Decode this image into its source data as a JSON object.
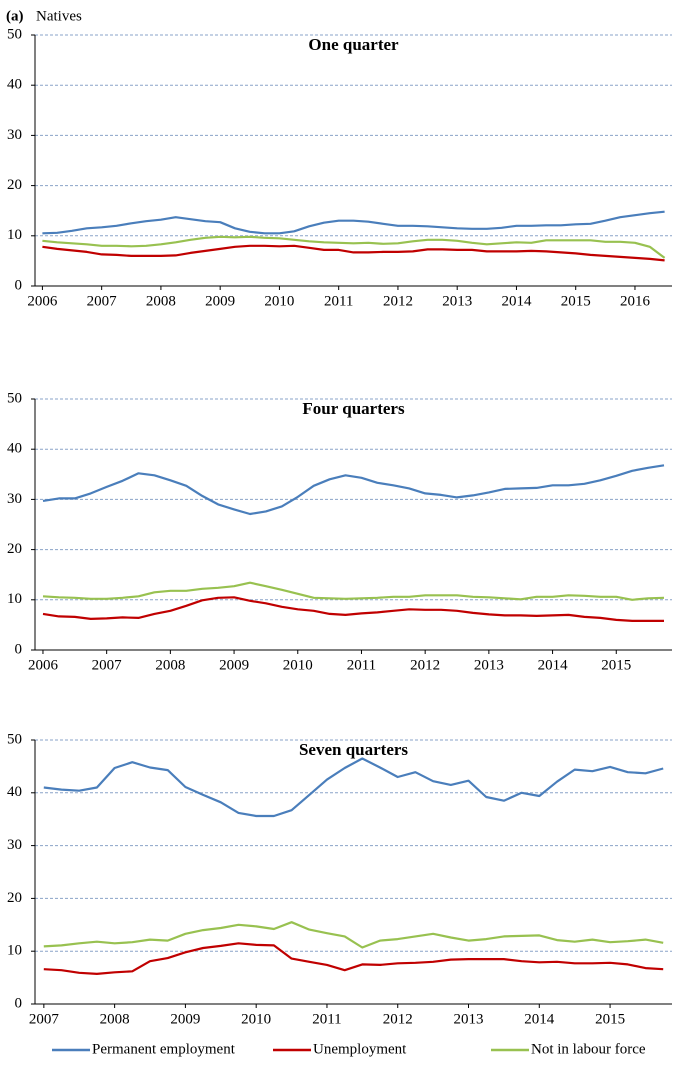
{
  "figure_label": "(a)",
  "figure_title": "Natives",
  "chart_data": [
    {
      "type": "line",
      "title": "One quarter",
      "categories": [
        "2006",
        null,
        null,
        null,
        "2007",
        null,
        null,
        null,
        "2008",
        null,
        null,
        null,
        "2009",
        null,
        null,
        null,
        "2010",
        null,
        null,
        null,
        "2011",
        null,
        null,
        null,
        "2012",
        null,
        null,
        null,
        "2013",
        null,
        null,
        null,
        "2014",
        null,
        null,
        null,
        "2015",
        null,
        null,
        null,
        "2016",
        null,
        null
      ],
      "ylim": [
        0,
        50
      ],
      "yticks": [
        0,
        10,
        20,
        30,
        40,
        50
      ],
      "grid": true,
      "series": [
        {
          "name": "Permanent employment",
          "color": "#4a7ebb",
          "values": [
            10.5,
            10.6,
            11,
            11.5,
            11.7,
            12,
            12.5,
            12.9,
            13.2,
            13.7,
            13.3,
            12.9,
            12.7,
            11.5,
            10.8,
            10.5,
            10.5,
            10.9,
            11.9,
            12.6,
            13,
            13,
            12.8,
            12.4,
            12,
            12,
            11.9,
            11.7,
            11.5,
            11.4,
            11.4,
            11.6,
            12,
            12,
            12.1,
            12.1,
            12.3,
            12.4,
            13,
            13.7,
            14.1,
            14.5,
            14.8
          ]
        },
        {
          "name": "Unemployment",
          "color": "#c00000",
          "values": [
            7.8,
            7.4,
            7.1,
            6.8,
            6.3,
            6.2,
            6,
            6,
            6,
            6.1,
            6.6,
            7,
            7.4,
            7.8,
            8,
            8,
            7.9,
            8,
            7.6,
            7.2,
            7.2,
            6.7,
            6.7,
            6.8,
            6.8,
            6.9,
            7.3,
            7.3,
            7.2,
            7.2,
            6.9,
            6.9,
            6.9,
            7,
            6.9,
            6.7,
            6.5,
            6.2,
            6,
            5.8,
            5.6,
            5.4,
            5.1
          ]
        },
        {
          "name": "Not in labour force",
          "color": "#98c150",
          "values": [
            9,
            8.7,
            8.5,
            8.3,
            8,
            8,
            7.9,
            8,
            8.3,
            8.7,
            9.2,
            9.6,
            9.8,
            9.7,
            9.8,
            9.6,
            9.5,
            9.2,
            8.9,
            8.7,
            8.6,
            8.5,
            8.6,
            8.4,
            8.5,
            8.9,
            9.2,
            9.2,
            9,
            8.6,
            8.3,
            8.5,
            8.7,
            8.6,
            9.1,
            9.1,
            9.1,
            9.1,
            8.8,
            8.8,
            8.6,
            7.8,
            5.6
          ]
        }
      ]
    },
    {
      "type": "line",
      "title": "Four quarters",
      "categories": [
        "2006",
        null,
        null,
        null,
        "2007",
        null,
        null,
        null,
        "2008",
        null,
        null,
        null,
        "2009",
        null,
        null,
        null,
        "2010",
        null,
        null,
        null,
        "2011",
        null,
        null,
        null,
        "2012",
        null,
        null,
        null,
        "2013",
        null,
        null,
        null,
        "2014",
        null,
        null,
        null,
        "2015",
        null,
        null,
        null
      ],
      "ylim": [
        0,
        50
      ],
      "yticks": [
        0,
        10,
        20,
        30,
        40,
        50
      ],
      "grid": true,
      "series": [
        {
          "name": "Permanent employment",
          "color": "#4a7ebb",
          "values": [
            29.7,
            30.2,
            30.2,
            31.2,
            32.5,
            33.7,
            35.2,
            34.8,
            33.8,
            32.7,
            30.7,
            29,
            28,
            27.1,
            27.6,
            28.6,
            30.5,
            32.7,
            34,
            34.8,
            34.3,
            33.3,
            32.8,
            32.2,
            31.2,
            30.9,
            30.4,
            30.8,
            31.4,
            32.1,
            32.2,
            32.3,
            32.8,
            32.8,
            33.1,
            33.8,
            34.7,
            35.7,
            36.3,
            36.8
          ]
        },
        {
          "name": "Unemployment",
          "color": "#c00000",
          "values": [
            7.2,
            6.7,
            6.6,
            6.2,
            6.3,
            6.5,
            6.4,
            7.2,
            7.8,
            8.8,
            9.9,
            10.4,
            10.5,
            9.8,
            9.3,
            8.6,
            8.1,
            7.8,
            7.2,
            7,
            7.3,
            7.5,
            7.8,
            8.1,
            8,
            8,
            7.8,
            7.4,
            7.1,
            6.9,
            6.9,
            6.8,
            6.9,
            7,
            6.6,
            6.4,
            6,
            5.8,
            5.8,
            5.8
          ]
        },
        {
          "name": "Not in labour force",
          "color": "#98c150",
          "values": [
            10.7,
            10.5,
            10.4,
            10.2,
            10.2,
            10.4,
            10.7,
            11.5,
            11.8,
            11.8,
            12.2,
            12.4,
            12.7,
            13.4,
            12.7,
            12,
            11.2,
            10.4,
            10.3,
            10.2,
            10.3,
            10.4,
            10.6,
            10.6,
            10.9,
            10.9,
            10.9,
            10.6,
            10.5,
            10.3,
            10.1,
            10.6,
            10.6,
            10.9,
            10.8,
            10.6,
            10.6,
            10,
            10.3,
            10.4
          ]
        }
      ]
    },
    {
      "type": "line",
      "title": "Seven quarters",
      "categories": [
        "2007",
        null,
        null,
        null,
        "2008",
        null,
        null,
        null,
        "2009",
        null,
        null,
        null,
        "2010",
        null,
        null,
        null,
        "2011",
        null,
        null,
        null,
        "2012",
        null,
        null,
        null,
        "2013",
        null,
        null,
        null,
        "2014",
        null,
        null,
        null,
        "2015",
        null,
        null,
        null
      ],
      "ylim": [
        0,
        50
      ],
      "yticks": [
        0,
        10,
        20,
        30,
        40,
        50
      ],
      "grid": true,
      "series": [
        {
          "name": "Permanent employment",
          "color": "#4a7ebb",
          "values": [
            41,
            40.6,
            40.4,
            41,
            44.7,
            45.8,
            44.8,
            44.3,
            41.1,
            39.6,
            38.2,
            36.2,
            35.6,
            35.6,
            36.7,
            39.6,
            42.5,
            44.7,
            46.5,
            44.8,
            43,
            43.9,
            42.2,
            41.5,
            42.3,
            39.2,
            38.5,
            40,
            39.4,
            42.1,
            44.4,
            44.1,
            44.9,
            43.9,
            43.7,
            44.6
          ]
        },
        {
          "name": "Unemployment",
          "color": "#c00000",
          "values": [
            6.6,
            6.4,
            5.9,
            5.7,
            6,
            6.2,
            8.1,
            8.7,
            9.8,
            10.6,
            11,
            11.5,
            11.2,
            11.1,
            8.6,
            8,
            7.4,
            6.4,
            7.5,
            7.4,
            7.7,
            7.8,
            8,
            8.4,
            8.5,
            8.5,
            8.5,
            8.1,
            7.9,
            8,
            7.7,
            7.7,
            7.8,
            7.5,
            6.8,
            6.6
          ]
        },
        {
          "name": "Not in labour force",
          "color": "#98c150",
          "values": [
            10.9,
            11.1,
            11.5,
            11.8,
            11.5,
            11.7,
            12.2,
            12,
            13.3,
            14,
            14.4,
            15,
            14.7,
            14.2,
            15.5,
            14.1,
            13.4,
            12.8,
            10.7,
            12,
            12.3,
            12.8,
            13.3,
            12.6,
            12,
            12.3,
            12.8,
            12.9,
            13,
            12.1,
            11.8,
            12.2,
            11.7,
            11.9,
            12.2,
            11.6
          ]
        }
      ]
    }
  ]
}
